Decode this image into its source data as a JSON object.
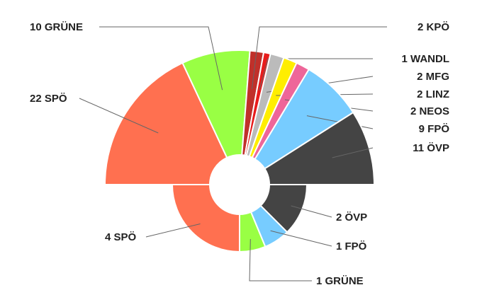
{
  "chart_data": [
    {
      "type": "pie",
      "variant": "semicircle-donut",
      "title": "",
      "slices": [
        {
          "party": "SPÖ",
          "seats": 22,
          "label": "22  SPÖ",
          "color": "#FF7050"
        },
        {
          "party": "GRÜNE",
          "seats": 10,
          "label": "10  GRÜNE",
          "color": "#99FF44"
        },
        {
          "party": "KPÖ",
          "seats": 2,
          "label": "2  KPÖ",
          "color": "#C0302A"
        },
        {
          "party": "WANDL",
          "seats": 1,
          "label": "1  WANDL",
          "color": "#E81C1C"
        },
        {
          "party": "MFG",
          "seats": 2,
          "label": "2  MFG",
          "color": "#BBBBBB"
        },
        {
          "party": "LINZ",
          "seats": 2,
          "label": "2  LINZ",
          "color": "#FFEE00"
        },
        {
          "party": "NEOS",
          "seats": 2,
          "label": "2  NEOS",
          "color": "#EE6699"
        },
        {
          "party": "FPÖ",
          "seats": 9,
          "label": "9  FPÖ",
          "color": "#77CCFF"
        },
        {
          "party": "ÖVP",
          "seats": 11,
          "label": "11  ÖVP",
          "color": "#444444"
        }
      ]
    },
    {
      "type": "pie",
      "variant": "semicircle-donut",
      "title": "",
      "slices": [
        {
          "party": "SPÖ",
          "seats": 4,
          "label": "4  SPÖ",
          "color": "#FF7050"
        },
        {
          "party": "GRÜNE",
          "seats": 1,
          "label": "1  GRÜNE",
          "color": "#99FF44"
        },
        {
          "party": "FPÖ",
          "seats": 1,
          "label": "1  FPÖ",
          "color": "#77CCFF"
        },
        {
          "party": "ÖVP",
          "seats": 2,
          "label": "2  ÖVP",
          "color": "#444444"
        }
      ]
    }
  ]
}
